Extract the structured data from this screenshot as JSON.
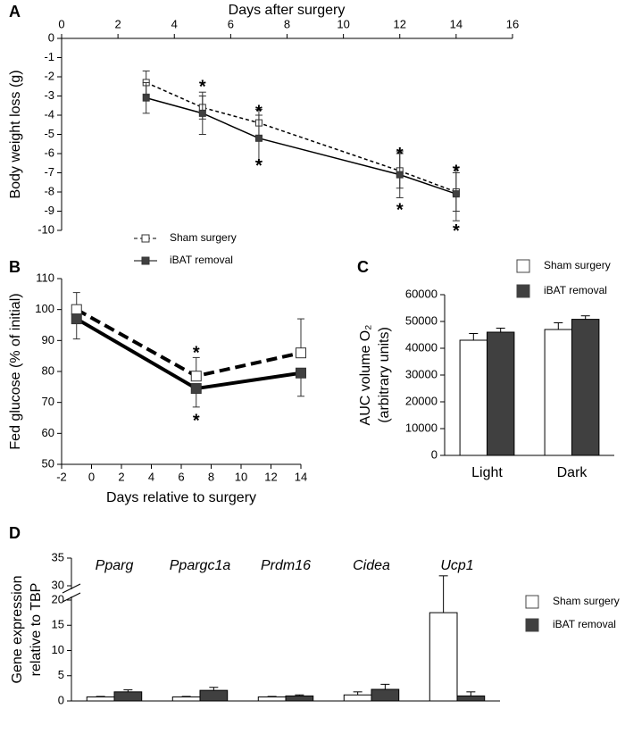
{
  "chart_data": [
    {
      "type": "line",
      "panel": "A",
      "xlabel": "Days after surgery",
      "ylabel": "Body weight loss (g)",
      "x": [
        3,
        5,
        7,
        12,
        14
      ],
      "xlim": [
        0,
        16
      ],
      "xticks": [
        0,
        2,
        4,
        6,
        8,
        10,
        12,
        14,
        16
      ],
      "ylim": [
        -10,
        0
      ],
      "yticks": [
        0,
        -1,
        -2,
        -3,
        -4,
        -5,
        -6,
        -7,
        -8,
        -9,
        -10
      ],
      "series": [
        {
          "name": "Sham surgery",
          "color": "#ffffff",
          "line_style": "dashed",
          "error_direction": "both",
          "values": [
            -2.3,
            -3.6,
            -4.4,
            -6.9,
            -8.0
          ],
          "errors": [
            0.6,
            0.6,
            0.7,
            0.9,
            1.0
          ]
        },
        {
          "name": "iBAT removal",
          "color": "#404040",
          "line_style": "solid",
          "error_direction": "both",
          "values": [
            -3.1,
            -3.9,
            -5.2,
            -7.1,
            -8.1
          ],
          "errors": [
            0.8,
            1.1,
            1.2,
            1.2,
            1.4
          ]
        }
      ],
      "annotations": [
        {
          "text": "*",
          "x": 5,
          "y": -2.3
        },
        {
          "text": "*",
          "x": 7,
          "y": -3.6
        },
        {
          "text": "*",
          "x": 7,
          "y": -6.4
        },
        {
          "text": "*",
          "x": 12,
          "y": -5.8
        },
        {
          "text": "*",
          "x": 12,
          "y": -8.7
        },
        {
          "text": "*",
          "x": 14,
          "y": -6.7
        },
        {
          "text": "*",
          "x": 14,
          "y": -9.8
        }
      ]
    },
    {
      "type": "line",
      "panel": "B",
      "xlabel": "Days relative to surgery",
      "ylabel": "Fed glucose (% of initial)",
      "x": [
        -1,
        7,
        14
      ],
      "xlim": [
        -2,
        14
      ],
      "xticks": [
        -2,
        0,
        2,
        4,
        6,
        8,
        10,
        12,
        14
      ],
      "ylim": [
        50,
        110
      ],
      "yticks": [
        50,
        60,
        70,
        80,
        90,
        100,
        110
      ],
      "series": [
        {
          "color": "#ffffff",
          "line_style": "dashed",
          "error_direction": "up",
          "values": [
            100,
            78.5,
            86
          ],
          "errors": [
            5.5,
            6,
            11
          ]
        },
        {
          "color": "#404040",
          "line_style": "solid",
          "error_direction": "down",
          "values": [
            97,
            74.5,
            79.5
          ],
          "errors": [
            6.5,
            6,
            7.5
          ]
        }
      ],
      "annotations": [
        {
          "text": "*",
          "x": 7,
          "y": 87.5
        },
        {
          "text": "*",
          "x": 7,
          "y": 65.5
        }
      ]
    },
    {
      "type": "bar",
      "panel": "C",
      "ylabel": [
        "AUC volume O₂",
        "(arbitrary units)"
      ],
      "categories": [
        "Light",
        "Dark"
      ],
      "ylim": [
        0,
        60000
      ],
      "yticks": [
        0,
        10000,
        20000,
        30000,
        40000,
        50000,
        60000
      ],
      "series": [
        {
          "name": "Sham surgery",
          "color": "#ffffff",
          "values": [
            43000,
            47000
          ],
          "errors": [
            2500,
            2500
          ]
        },
        {
          "name": "iBAT removal",
          "color": "#404040",
          "values": [
            46000,
            50800
          ],
          "errors": [
            1500,
            1300
          ]
        }
      ]
    },
    {
      "type": "bar",
      "panel": "D",
      "ylabel": [
        "Gene expression",
        "relative to TBP"
      ],
      "categories": [
        "Pparg",
        "Ppargc1a",
        "Prdm16",
        "Cidea",
        "Ucp1"
      ],
      "ylim": [
        0,
        35
      ],
      "ybreak": [
        20,
        30
      ],
      "yticks": [
        0,
        5,
        10,
        15,
        20,
        30,
        35
      ],
      "series": [
        {
          "name": "Sham surgery",
          "color": "#ffffff",
          "values": [
            0.8,
            0.8,
            0.8,
            1.2,
            17.5
          ],
          "errors": [
            0.1,
            0.1,
            0.1,
            0.6,
            14.3
          ]
        },
        {
          "name": "iBAT removal",
          "color": "#404040",
          "values": [
            1.8,
            2.1,
            1.0,
            2.3,
            1.0
          ],
          "errors": [
            0.4,
            0.6,
            0.2,
            1.0,
            0.8
          ]
        }
      ]
    }
  ]
}
